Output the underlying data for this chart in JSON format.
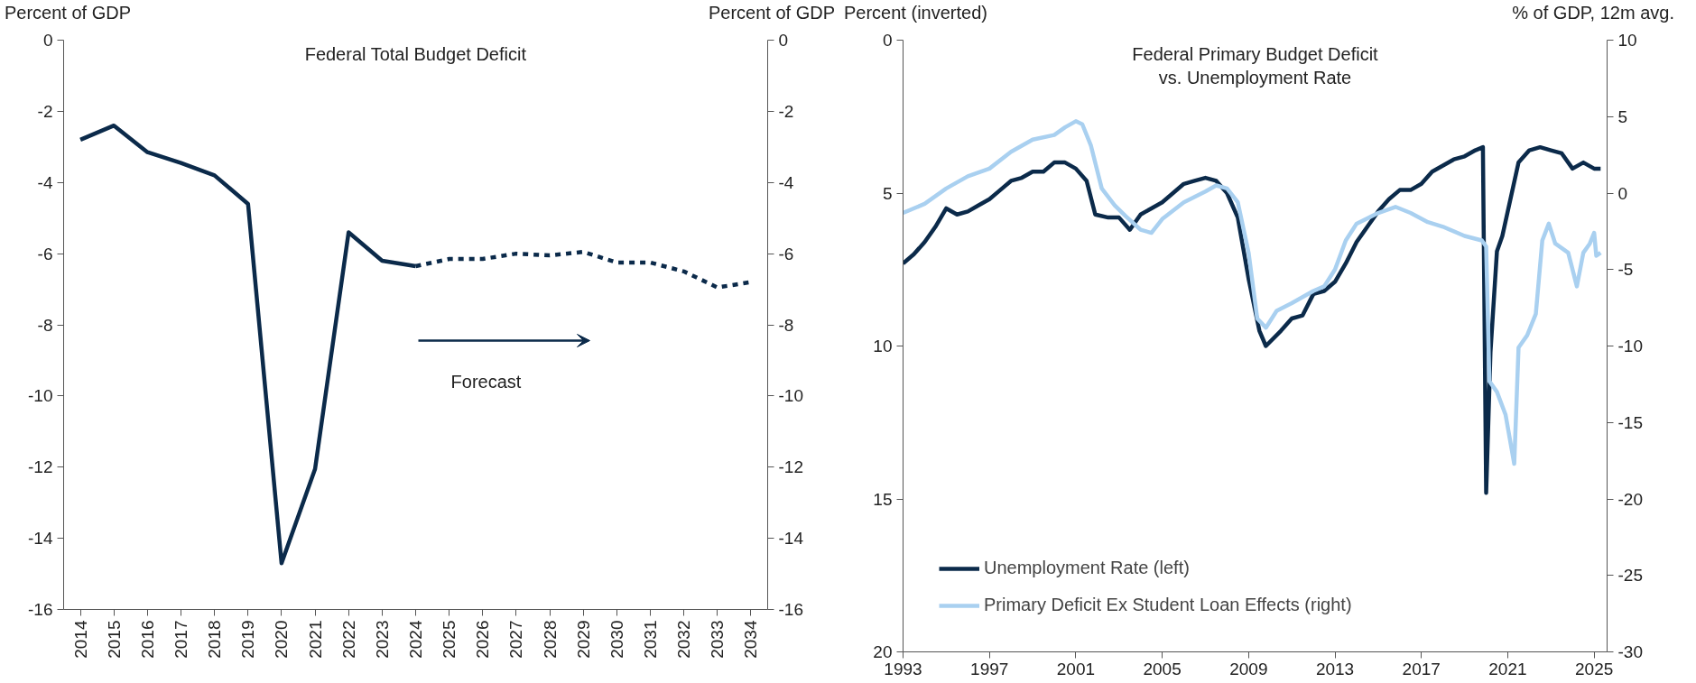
{
  "chart_data": [
    {
      "type": "line",
      "title": "Federal Total Budget Deficit",
      "ylabel": "Percent of GDP",
      "y2label": "Percent of GDP",
      "categories": [
        "2014",
        "2015",
        "2016",
        "2017",
        "2018",
        "2019",
        "2020",
        "2021",
        "2022",
        "2023",
        "2024",
        "2025",
        "2026",
        "2027",
        "2028",
        "2029",
        "2030",
        "2031",
        "2032",
        "2033",
        "2034"
      ],
      "series": [
        {
          "color": "#0b2a4a",
          "line_style": "solid",
          "values": [
            -2.8,
            -2.4,
            -3.15,
            -3.45,
            -3.8,
            -4.6,
            -14.7,
            -12.05,
            -5.4,
            -6.2,
            -6.35,
            null,
            null,
            null,
            null,
            null,
            null,
            null,
            null,
            null,
            null
          ]
        },
        {
          "color": "#0b2a4a",
          "line_style": "dashed",
          "values": [
            null,
            null,
            null,
            null,
            null,
            null,
            null,
            null,
            null,
            null,
            -6.35,
            -6.15,
            -6.15,
            -6.0,
            -6.05,
            -5.95,
            -6.25,
            -6.25,
            -6.5,
            -6.95,
            -6.8
          ]
        }
      ],
      "ylim": [
        -16,
        0
      ],
      "yticks": [
        -16,
        -14,
        -12,
        -10,
        -8,
        -6,
        -4,
        -2,
        0
      ],
      "y2lim": [
        -16,
        0
      ],
      "y2ticks": [
        -16,
        -14,
        -12,
        -10,
        -8,
        -6,
        -4,
        -2,
        0
      ],
      "annotations": [
        "Forecast"
      ]
    },
    {
      "type": "line",
      "title": "Federal Primary Budget Deficit\nvs. Unemployment Rate",
      "ylabel": "Percent (inverted)",
      "y2label": "% of GDP, 12m avg.",
      "xlim": [
        1993,
        2025.6
      ],
      "xticks": [
        1993,
        1997,
        2001,
        2005,
        2009,
        2013,
        2017,
        2021,
        2025
      ],
      "ylim": [
        20,
        0
      ],
      "yticks": [
        0,
        5,
        10,
        15,
        20
      ],
      "y2lim": [
        -30,
        10
      ],
      "y2ticks": [
        -30,
        -25,
        -20,
        -15,
        -10,
        -5,
        0,
        5,
        10
      ],
      "legend": "bottom left",
      "series": [
        {
          "name": "Unemployment Rate (left)",
          "color": "#0b2a4a",
          "axis": "y",
          "x": [
            1993.0,
            1993.5,
            1994.0,
            1994.5,
            1995.0,
            1995.5,
            1996.0,
            1996.5,
            1997.0,
            1997.5,
            1998.0,
            1998.5,
            1999.0,
            1999.5,
            2000.0,
            2000.5,
            2001.0,
            2001.5,
            2001.9,
            2002.5,
            2003.0,
            2003.5,
            2004.0,
            2004.5,
            2005.0,
            2005.5,
            2006.0,
            2006.5,
            2007.0,
            2007.5,
            2008.0,
            2008.5,
            2009.0,
            2009.5,
            2009.8,
            2010.5,
            2011.0,
            2011.5,
            2012.0,
            2012.5,
            2013.0,
            2013.5,
            2014.0,
            2014.5,
            2015.0,
            2015.5,
            2016.0,
            2016.5,
            2017.0,
            2017.5,
            2018.0,
            2018.5,
            2019.0,
            2019.5,
            2019.85,
            2020.0,
            2020.2,
            2020.5,
            2020.75,
            2021.0,
            2021.5,
            2022.0,
            2022.5,
            2023.0,
            2023.5,
            2024.0,
            2024.5,
            2025.0,
            2025.3
          ],
          "values": [
            7.3,
            7.0,
            6.6,
            6.1,
            5.5,
            5.7,
            5.6,
            5.4,
            5.2,
            4.9,
            4.6,
            4.5,
            4.3,
            4.3,
            4.0,
            4.0,
            4.2,
            4.6,
            5.7,
            5.8,
            5.8,
            6.2,
            5.7,
            5.5,
            5.3,
            5.0,
            4.7,
            4.6,
            4.5,
            4.6,
            5.0,
            5.8,
            7.8,
            9.5,
            10.0,
            9.5,
            9.1,
            9.0,
            8.3,
            8.2,
            7.9,
            7.3,
            6.6,
            6.1,
            5.6,
            5.2,
            4.9,
            4.9,
            4.7,
            4.3,
            4.1,
            3.9,
            3.8,
            3.6,
            3.5,
            14.8,
            10.2,
            6.9,
            6.4,
            5.6,
            4.0,
            3.6,
            3.5,
            3.6,
            3.7,
            4.2,
            4.0,
            4.2,
            4.2
          ]
        },
        {
          "name": "Primary Deficit Ex Student Loan Effects (right)",
          "color": "#a9d0f0",
          "axis": "y2",
          "x": [
            1993.0,
            1994.0,
            1995.0,
            1996.0,
            1997.0,
            1998.0,
            1999.0,
            2000.0,
            2000.5,
            2001.0,
            2001.3,
            2001.7,
            2002.2,
            2002.8,
            2003.3,
            2004.0,
            2004.5,
            2005.0,
            2006.0,
            2007.0,
            2007.5,
            2008.0,
            2008.5,
            2009.0,
            2009.4,
            2009.8,
            2010.3,
            2011.0,
            2011.5,
            2012.0,
            2012.5,
            2013.0,
            2013.5,
            2014.0,
            2015.0,
            2015.8,
            2016.5,
            2017.3,
            2018.0,
            2019.0,
            2019.8,
            2020.0,
            2020.15,
            2020.5,
            2020.9,
            2021.3,
            2021.5,
            2021.9,
            2022.3,
            2022.6,
            2022.9,
            2023.2,
            2023.8,
            2024.2,
            2024.5,
            2024.8,
            2025.0,
            2025.1,
            2025.3
          ],
          "values": [
            -1.3,
            -0.7,
            0.3,
            1.1,
            1.6,
            2.7,
            3.5,
            3.8,
            4.3,
            4.7,
            4.5,
            3.1,
            0.3,
            -0.8,
            -1.5,
            -2.4,
            -2.6,
            -1.7,
            -0.6,
            0.1,
            0.5,
            0.3,
            -0.6,
            -3.9,
            -8.2,
            -8.8,
            -7.7,
            -7.2,
            -6.8,
            -6.4,
            -6.1,
            -5.0,
            -3.1,
            -2.0,
            -1.3,
            -0.9,
            -1.3,
            -1.9,
            -2.2,
            -2.8,
            -3.1,
            -3.5,
            -12.3,
            -13.0,
            -14.5,
            -17.7,
            -10.1,
            -9.3,
            -7.9,
            -3.1,
            -2.0,
            -3.3,
            -3.9,
            -6.1,
            -3.9,
            -3.3,
            -2.6,
            -4.1,
            -3.9
          ]
        }
      ]
    }
  ]
}
